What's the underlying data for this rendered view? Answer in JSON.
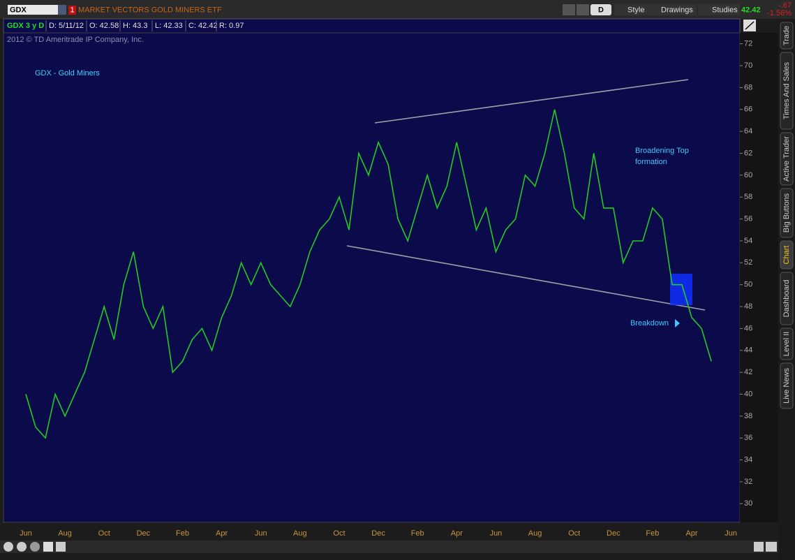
{
  "toolbar": {
    "symbol": "GDX",
    "description": "MARKET VECTORS GOLD MINERS ETF",
    "badge": "1",
    "buttons": [
      "D",
      "Style",
      "Drawings",
      "Studies"
    ],
    "last": "42.42",
    "change": "-.67",
    "change_pct": "-1.56%"
  },
  "info_bar": [
    "GDX 3 y D",
    "D: 5/11/12",
    "O: 42.58",
    "H: 43.3",
    "L: 42.33",
    "C: 42.42",
    "R: 0.97"
  ],
  "sidebar": {
    "tabs": [
      "Trade",
      "Times And Sales",
      "Active Trader",
      "Big Buttons",
      "Chart",
      "Dashboard",
      "Level II",
      "Live News"
    ]
  },
  "chart_data": {
    "type": "line",
    "title": "GDX - Gold Miners",
    "copyright": "2012 © TD Ameritrade IP Company, Inc.",
    "annotations": [
      "Broadening Top",
      "formation",
      "Breakdown"
    ],
    "color": "#22cc22",
    "categories": [
      "Jun",
      null,
      null,
      null,
      "Aug",
      null,
      null,
      null,
      "Oct",
      null,
      null,
      null,
      "Dec",
      null,
      null,
      null,
      "Feb",
      null,
      null,
      null,
      "Apr",
      null,
      null,
      null,
      "Jun",
      null,
      null,
      null,
      "Aug",
      null,
      null,
      null,
      "Oct",
      null,
      null,
      null,
      "Dec",
      null,
      null,
      null,
      "Feb",
      null,
      null,
      null,
      "Apr",
      null,
      null,
      null,
      "Jun",
      null,
      null,
      null,
      "Aug",
      null,
      null,
      null,
      "Oct",
      null,
      null,
      null,
      "Dec",
      null,
      null,
      null,
      "Feb",
      null,
      null,
      null,
      "Apr",
      null,
      null,
      null,
      "Jun"
    ],
    "values": [
      40,
      37,
      36,
      40,
      38,
      40,
      42,
      45,
      48,
      45,
      50,
      53,
      48,
      46,
      48,
      42,
      43,
      45,
      46,
      44,
      47,
      49,
      52,
      50,
      52,
      50,
      49,
      48,
      50,
      53,
      55,
      56,
      58,
      55,
      62,
      60,
      63,
      61,
      56,
      54,
      57,
      60,
      57,
      59,
      63,
      59,
      55,
      57,
      53,
      55,
      56,
      60,
      59,
      62,
      66,
      62,
      57,
      56,
      62,
      57,
      57,
      52,
      54,
      54,
      57,
      56,
      50,
      50,
      47,
      46,
      43,
      null,
      null
    ],
    "ylim": [
      28.3,
      73
    ],
    "yticks": [
      30,
      32,
      34,
      36,
      38,
      40,
      42,
      44,
      46,
      48,
      50,
      52,
      54,
      56,
      58,
      60,
      62,
      64,
      66,
      68,
      70,
      72
    ]
  }
}
